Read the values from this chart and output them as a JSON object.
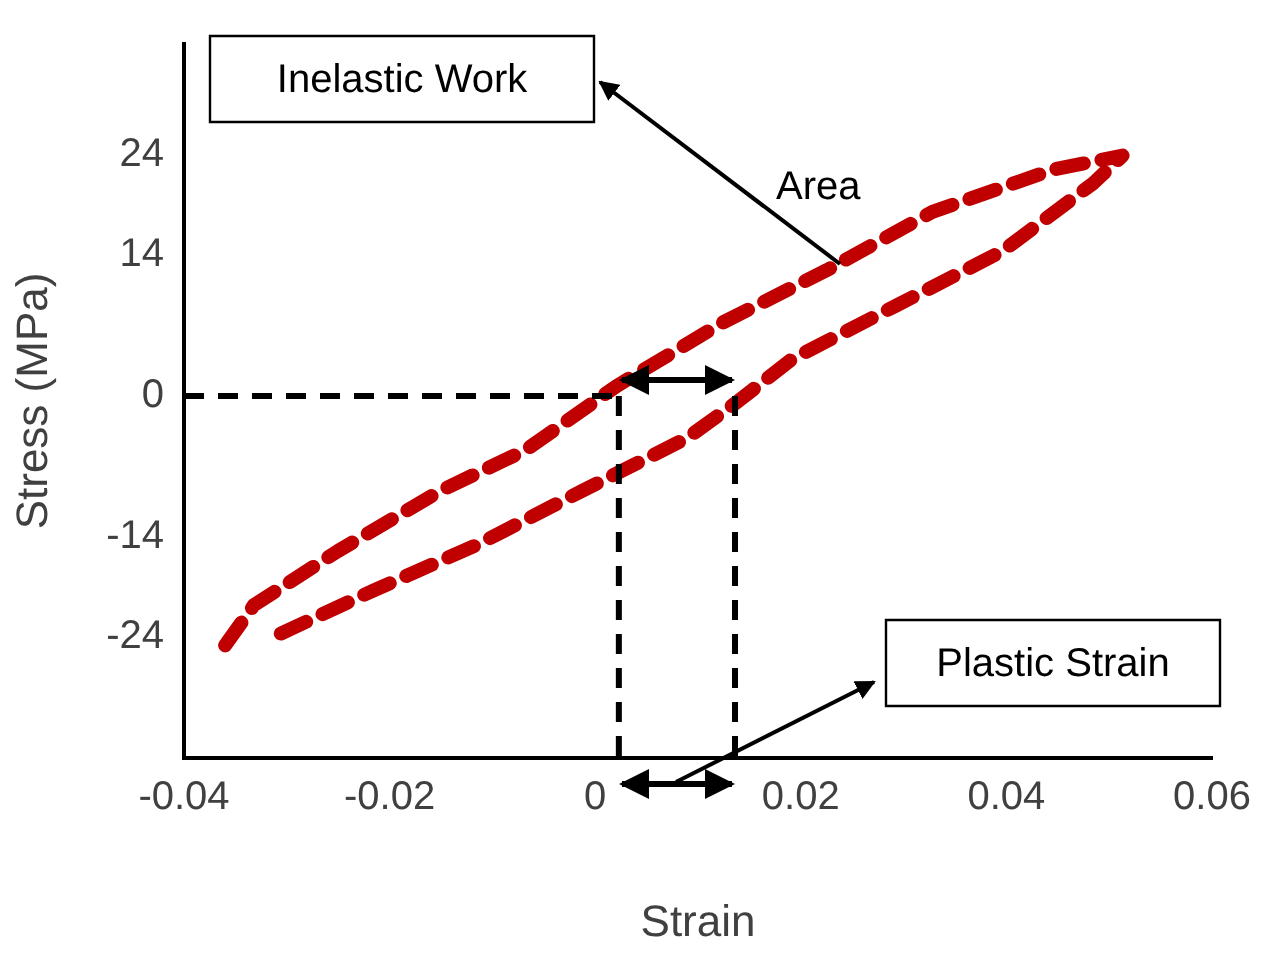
{
  "chart_data": {
    "type": "line",
    "xlabel": "Strain",
    "ylabel": "Stress (MPa)",
    "xlim": [
      -0.04,
      0.06
    ],
    "xticks": [
      -0.04,
      -0.02,
      0,
      0.02,
      0.04,
      0.06
    ],
    "ylim": [
      -36,
      35
    ],
    "yticks": [
      24,
      14,
      0,
      -14,
      -24
    ],
    "grid": false,
    "legend": false,
    "marker": "none",
    "series": [
      {
        "color": "#c00000",
        "line_style": "dashed",
        "x": [
          -0.036,
          -0.0332,
          -0.025,
          -0.015,
          -0.0068,
          0.0021,
          0.0124,
          0.0225,
          0.0328,
          0.0445,
          0.0513,
          0.0485,
          0.0396,
          0.0293,
          0.0192,
          0.0138,
          0.0089,
          -0.0012,
          -0.0115,
          -0.0217,
          -0.0318
        ],
        "values": [
          -24.8,
          -20.8,
          -15.4,
          -9.4,
          -5.4,
          1.0,
          7.3,
          12.5,
          18.3,
          22.5,
          23.9,
          21.2,
          14.4,
          9.0,
          3.7,
          -0.6,
          -4.2,
          -9.4,
          -14.8,
          -19.4,
          -24.2
        ]
      },
      {
        "color": "#000000",
        "line_style": "dashed",
        "x": [
          -0.04,
          0.0023
        ],
        "values": [
          0,
          0
        ]
      },
      {
        "color": "#000000",
        "line_style": "dashed",
        "x": [
          0.0023,
          0.0023
        ],
        "values": [
          0,
          -36
        ]
      },
      {
        "color": "#000000",
        "line_style": "dashed",
        "x": [
          0.0136,
          0.0136
        ],
        "values": [
          0,
          -36
        ]
      }
    ],
    "annotations": [
      "Inelastic Work",
      "Area",
      "Plastic Strain"
    ]
  }
}
